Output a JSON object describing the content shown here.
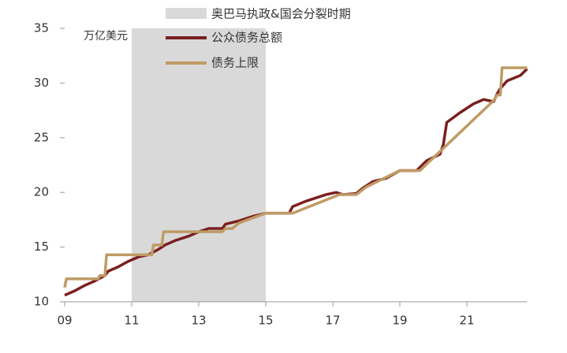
{
  "chart_data": {
    "type": "line",
    "legend": "top",
    "unit_label": "万亿美元",
    "shaded": {
      "name": "奥巴马执政&国会分裂时期",
      "range": [
        11,
        15
      ],
      "color": "#d9d9d9"
    },
    "xlim": [
      9,
      22.8
    ],
    "xticks": [
      {
        "value": 9,
        "label": "09"
      },
      11,
      13,
      15,
      17,
      19,
      21
    ],
    "ylim": [
      10,
      35
    ],
    "yticks": [
      10,
      15,
      20,
      25,
      30,
      35
    ],
    "series": [
      {
        "name": "公众债务总额",
        "color": "#7b1f1f",
        "x": [
          9,
          9.3,
          9.6,
          9.9,
          10.2,
          10.3,
          10.6,
          10.9,
          11.2,
          11.5,
          11.8,
          12.0,
          12.3,
          12.7,
          13.0,
          13.3,
          13.7,
          13.8,
          14.2,
          14.6,
          15.0,
          15.7,
          15.8,
          16.2,
          16.8,
          17.1,
          17.3,
          17.7,
          17.9,
          18.2,
          18.6,
          19.0,
          19.5,
          19.8,
          20.2,
          20.3,
          20.4,
          20.8,
          21.2,
          21.5,
          21.8,
          21.9,
          22.0,
          22.2,
          22.6,
          22.8
        ],
        "values": [
          10.6,
          11.0,
          11.5,
          11.9,
          12.4,
          12.8,
          13.2,
          13.7,
          14.1,
          14.3,
          14.8,
          15.2,
          15.6,
          16.0,
          16.4,
          16.7,
          16.7,
          17.1,
          17.4,
          17.8,
          18.1,
          18.1,
          18.7,
          19.2,
          19.8,
          20.0,
          19.8,
          19.9,
          20.4,
          21.0,
          21.3,
          22.0,
          22.0,
          22.9,
          23.5,
          24.4,
          26.4,
          27.3,
          28.1,
          28.5,
          28.3,
          29.0,
          29.5,
          30.2,
          30.7,
          31.3
        ]
      },
      {
        "name": "债务上限",
        "color": "#bf9b65",
        "x": [
          9,
          9.05,
          10.0,
          10.05,
          10.2,
          10.25,
          11.6,
          11.65,
          11.9,
          11.95,
          13.7,
          13.8,
          14.0,
          14.2,
          15.0,
          15.8,
          17.2,
          17.7,
          18.0,
          19.0,
          19.6,
          21.8,
          21.9,
          22.0,
          22.05,
          22.8
        ],
        "values": [
          11.3,
          12.1,
          12.1,
          12.4,
          12.4,
          14.3,
          14.3,
          15.2,
          15.2,
          16.4,
          16.4,
          16.7,
          16.7,
          17.2,
          18.1,
          18.1,
          19.8,
          19.8,
          20.5,
          22.0,
          22.0,
          28.4,
          28.9,
          28.9,
          31.4,
          31.4
        ]
      }
    ]
  }
}
